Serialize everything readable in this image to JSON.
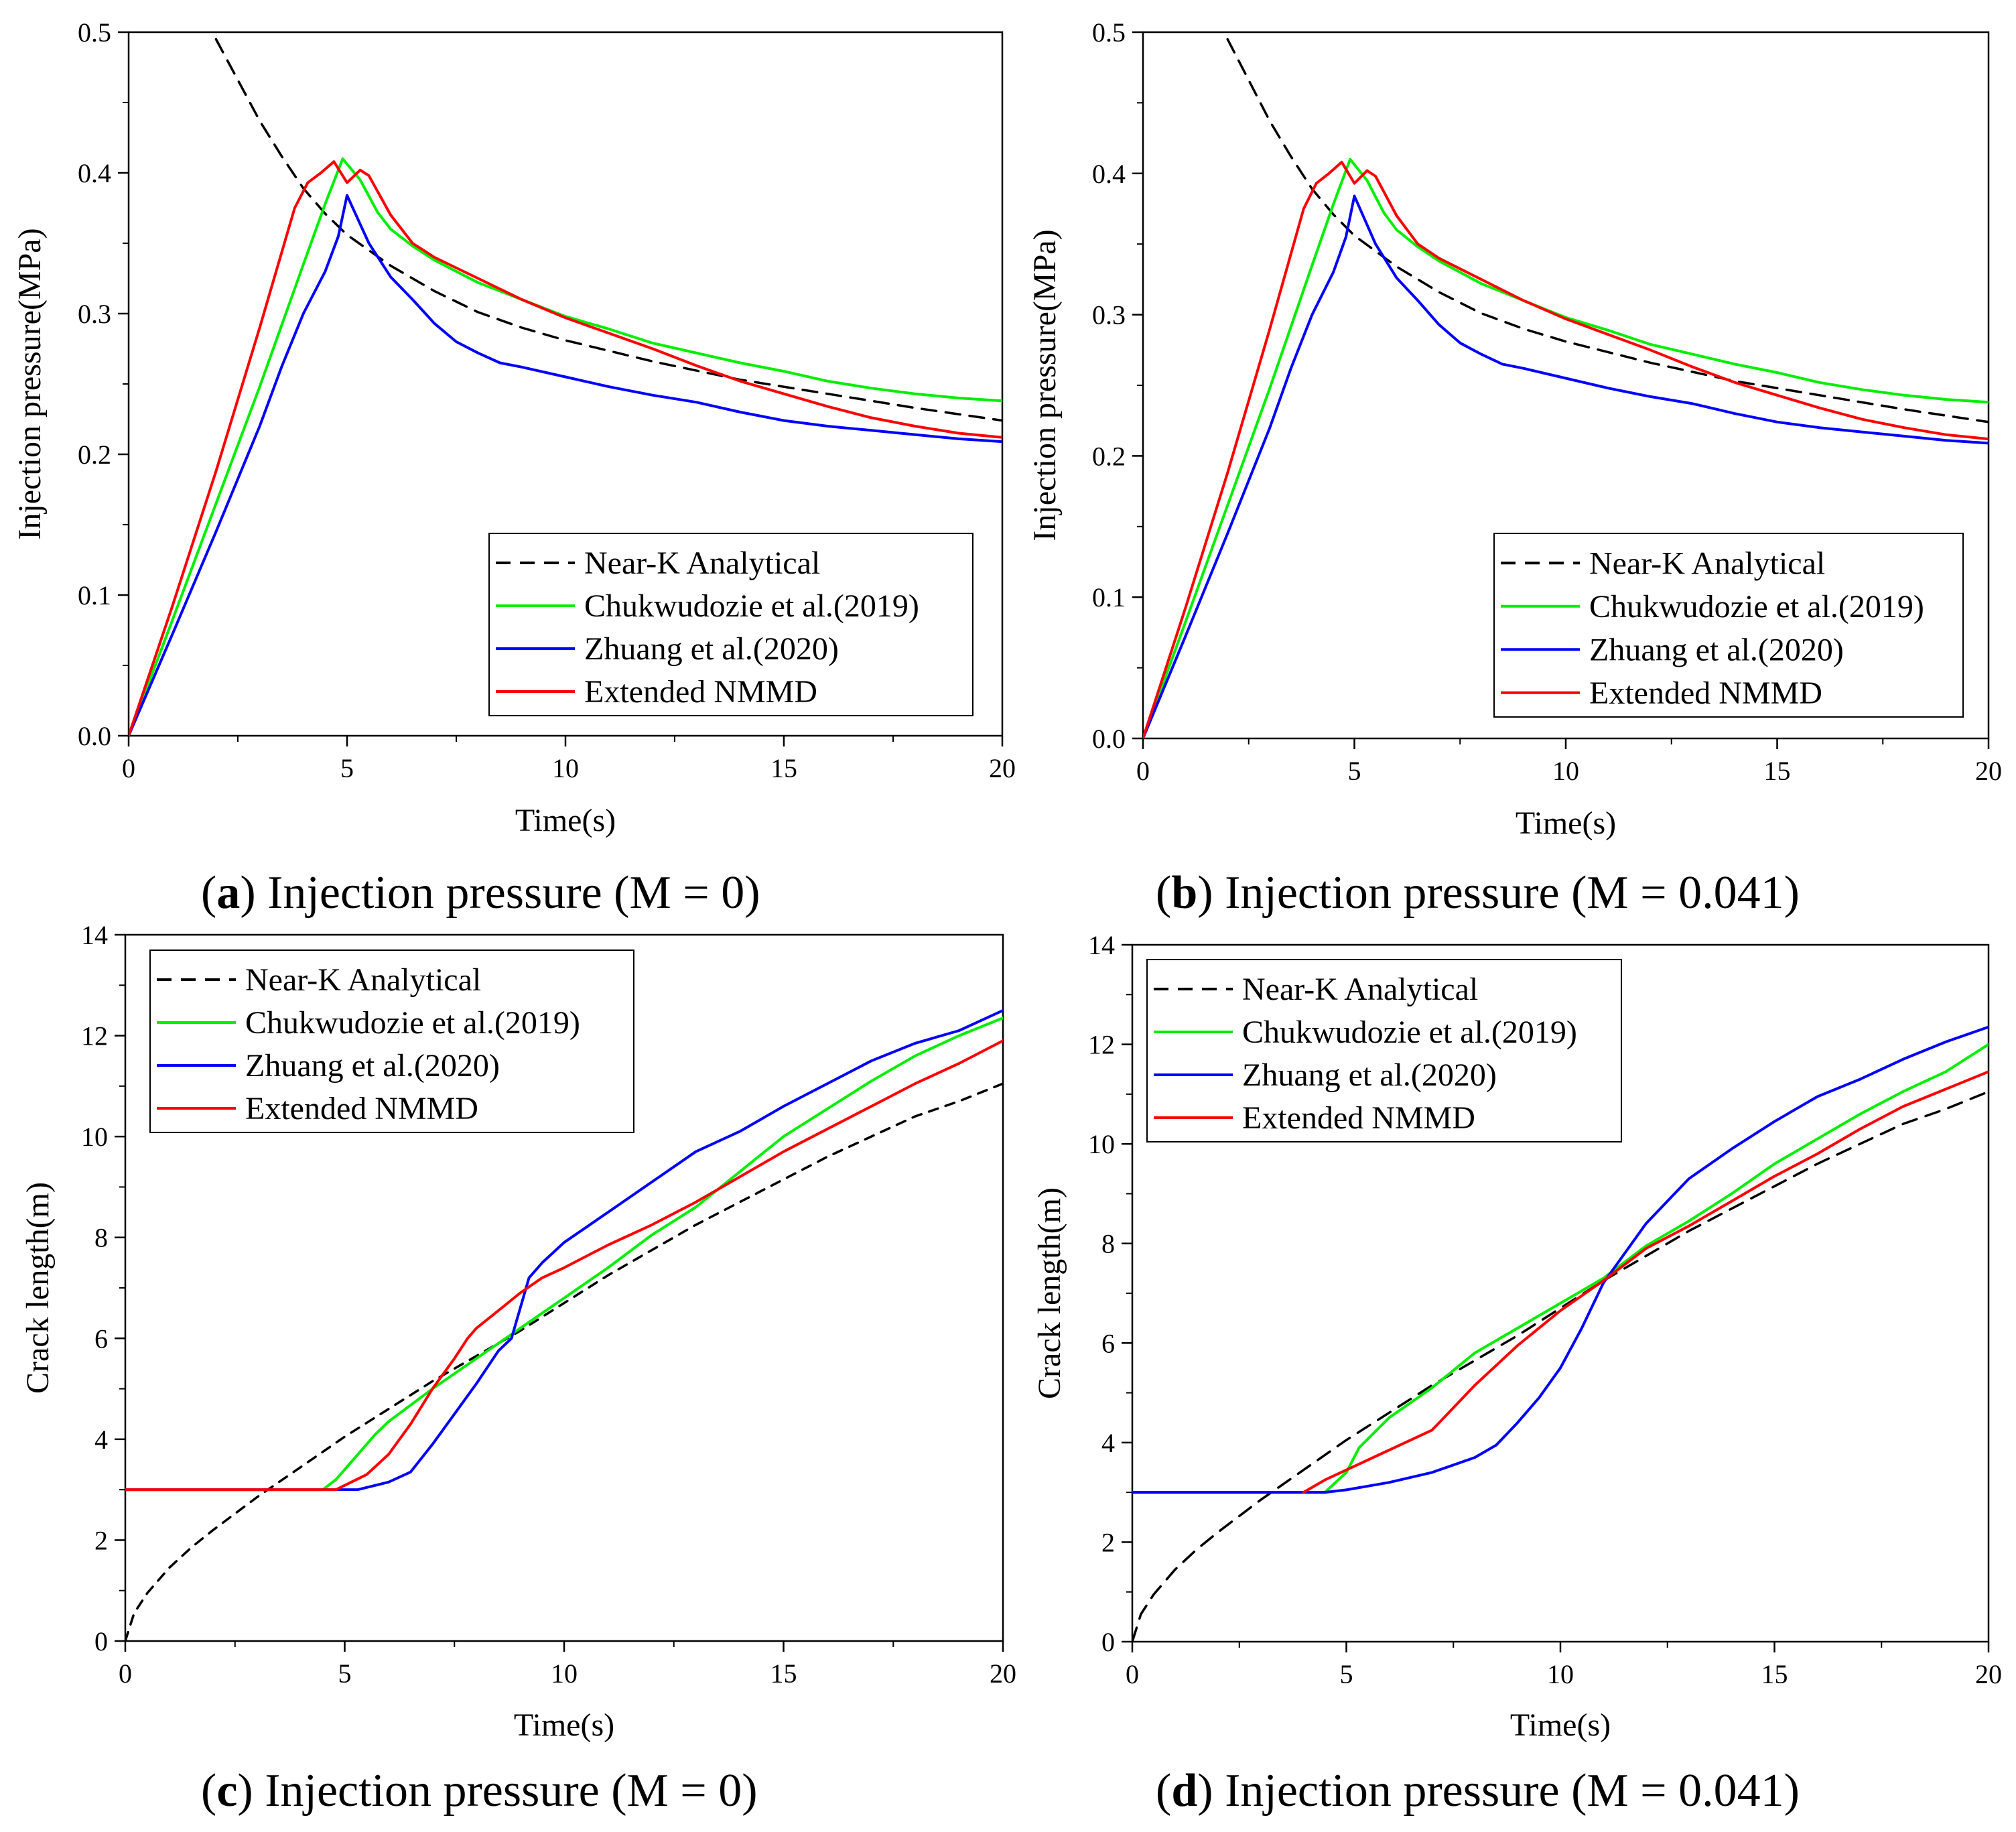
{
  "chart_data": [
    {
      "type": "line",
      "panel_letter": "a",
      "caption_text": " Injection pressure (M = 0)",
      "xlabel": "Time(s)",
      "ylabel": "Injection pressure(MPa)",
      "xlim": [
        0,
        20
      ],
      "ylim": [
        0,
        0.5
      ],
      "xticks": [
        "0",
        "5",
        "10",
        "15",
        "20"
      ],
      "yticks": [
        "0.0",
        "0.1",
        "0.2",
        "0.3",
        "0.4",
        "0.5"
      ],
      "legend_position": "bottom-right",
      "series": [
        {
          "name": "Near-K Analytical",
          "color": "#000000",
          "dash": "dashed",
          "x": [
            2.0,
            2.5,
            3.0,
            3.5,
            4.0,
            4.5,
            5.0,
            6.0,
            7.0,
            8.0,
            9.0,
            10.0,
            12.0,
            14.0,
            16.0,
            18.0,
            20.0
          ],
          "y": [
            0.495,
            0.466,
            0.437,
            0.412,
            0.389,
            0.371,
            0.356,
            0.334,
            0.316,
            0.301,
            0.29,
            0.281,
            0.266,
            0.253,
            0.243,
            0.233,
            0.224
          ]
        },
        {
          "name": "Chukwudozie et al.(2019)",
          "color": "#00ee00",
          "dash": "solid",
          "x": [
            0,
            1,
            2,
            3,
            4.0,
            4.5,
            4.9,
            5.3,
            5.7,
            6.0,
            6.5,
            7.0,
            8.0,
            9.0,
            10.0,
            11.0,
            12.0,
            13.0,
            14.0,
            15.0,
            16.0,
            17.0,
            18.0,
            19.0,
            20.0
          ],
          "y": [
            0,
            0.082,
            0.165,
            0.248,
            0.335,
            0.378,
            0.41,
            0.395,
            0.372,
            0.36,
            0.348,
            0.338,
            0.322,
            0.31,
            0.298,
            0.289,
            0.279,
            0.272,
            0.265,
            0.259,
            0.252,
            0.247,
            0.243,
            0.24,
            0.238
          ]
        },
        {
          "name": "Zhuang et al.(2020)",
          "color": "#0000ff",
          "dash": "solid",
          "x": [
            0,
            1,
            2,
            3,
            3.5,
            4.0,
            4.5,
            4.8,
            5.0,
            5.5,
            6.0,
            6.5,
            7.0,
            7.5,
            8.0,
            8.5,
            9.0,
            10.0,
            11.0,
            12.0,
            13.0,
            14.0,
            15.0,
            16.0,
            17.0,
            18.0,
            19.0,
            20.0
          ],
          "y": [
            0,
            0.072,
            0.145,
            0.22,
            0.262,
            0.3,
            0.33,
            0.355,
            0.384,
            0.35,
            0.326,
            0.31,
            0.293,
            0.28,
            0.272,
            0.265,
            0.262,
            0.255,
            0.248,
            0.242,
            0.237,
            0.23,
            0.224,
            0.22,
            0.217,
            0.214,
            0.211,
            0.209
          ]
        },
        {
          "name": "Extended NMMD",
          "color": "#ff0000",
          "dash": "solid",
          "x": [
            0,
            1,
            2,
            3,
            3.8,
            4.1,
            4.4,
            4.7,
            5.0,
            5.3,
            5.5,
            6.0,
            6.5,
            7.0,
            8.0,
            9.0,
            10.0,
            11.0,
            12.0,
            13.0,
            14.0,
            15.0,
            16.0,
            17.0,
            18.0,
            19.0,
            20.0
          ],
          "y": [
            0,
            0.092,
            0.188,
            0.29,
            0.375,
            0.393,
            0.4,
            0.408,
            0.393,
            0.402,
            0.398,
            0.37,
            0.35,
            0.34,
            0.325,
            0.31,
            0.297,
            0.286,
            0.275,
            0.263,
            0.252,
            0.243,
            0.234,
            0.226,
            0.22,
            0.215,
            0.212
          ]
        }
      ]
    },
    {
      "type": "line",
      "panel_letter": "b",
      "caption_text": " Injection pressure (M = 0.041)",
      "xlabel": "Time(s)",
      "ylabel": "Injection pressure(MPa)",
      "xlim": [
        0,
        20
      ],
      "ylim": [
        0,
        0.5
      ],
      "xticks": [
        "0",
        "5",
        "10",
        "15",
        "20"
      ],
      "yticks": [
        "0.0",
        "0.1",
        "0.2",
        "0.3",
        "0.4",
        "0.5"
      ],
      "legend_position": "bottom-right",
      "series": [
        {
          "name": "Near-K Analytical",
          "color": "#000000",
          "dash": "dashed",
          "x": [
            2.0,
            2.5,
            3.0,
            3.5,
            4.0,
            4.5,
            5.0,
            6.0,
            7.0,
            8.0,
            9.0,
            10.0,
            12.0,
            14.0,
            16.0,
            18.0,
            20.0
          ],
          "y": [
            0.495,
            0.466,
            0.437,
            0.412,
            0.389,
            0.371,
            0.356,
            0.334,
            0.316,
            0.301,
            0.29,
            0.281,
            0.266,
            0.253,
            0.243,
            0.233,
            0.224
          ]
        },
        {
          "name": "Chukwudozie et al.(2019)",
          "color": "#00ee00",
          "dash": "solid",
          "x": [
            0,
            1,
            2,
            3,
            4.0,
            4.5,
            4.9,
            5.3,
            5.7,
            6.0,
            6.5,
            7.0,
            8.0,
            9.0,
            10.0,
            11.0,
            12.0,
            13.0,
            14.0,
            15.0,
            16.0,
            17.0,
            18.0,
            19.0,
            20.0
          ],
          "y": [
            0,
            0.082,
            0.165,
            0.248,
            0.335,
            0.378,
            0.41,
            0.395,
            0.372,
            0.36,
            0.348,
            0.338,
            0.322,
            0.31,
            0.298,
            0.289,
            0.279,
            0.272,
            0.265,
            0.259,
            0.252,
            0.247,
            0.243,
            0.24,
            0.238
          ]
        },
        {
          "name": "Zhuang et al.(2020)",
          "color": "#0000ff",
          "dash": "solid",
          "x": [
            0,
            1,
            2,
            3,
            3.5,
            4.0,
            4.5,
            4.8,
            5.0,
            5.5,
            6.0,
            6.5,
            7.0,
            7.5,
            8.0,
            8.5,
            9.0,
            10.0,
            11.0,
            12.0,
            13.0,
            14.0,
            15.0,
            16.0,
            17.0,
            18.0,
            19.0,
            20.0
          ],
          "y": [
            0,
            0.072,
            0.145,
            0.22,
            0.262,
            0.3,
            0.33,
            0.355,
            0.384,
            0.35,
            0.326,
            0.31,
            0.293,
            0.28,
            0.272,
            0.265,
            0.262,
            0.255,
            0.248,
            0.242,
            0.237,
            0.23,
            0.224,
            0.22,
            0.217,
            0.214,
            0.211,
            0.209
          ]
        },
        {
          "name": "Extended NMMD",
          "color": "#ff0000",
          "dash": "solid",
          "x": [
            0,
            1,
            2,
            3,
            3.8,
            4.1,
            4.4,
            4.7,
            5.0,
            5.3,
            5.5,
            6.0,
            6.5,
            7.0,
            8.0,
            9.0,
            10.0,
            11.0,
            12.0,
            13.0,
            14.0,
            15.0,
            16.0,
            17.0,
            18.0,
            19.0,
            20.0
          ],
          "y": [
            0,
            0.092,
            0.188,
            0.29,
            0.375,
            0.393,
            0.4,
            0.408,
            0.393,
            0.402,
            0.398,
            0.37,
            0.35,
            0.34,
            0.325,
            0.31,
            0.297,
            0.286,
            0.275,
            0.263,
            0.252,
            0.243,
            0.234,
            0.226,
            0.22,
            0.215,
            0.212
          ]
        }
      ]
    },
    {
      "type": "line",
      "panel_letter": "c",
      "caption_text": " Injection pressure (M = 0)",
      "xlabel": "Time(s)",
      "ylabel": "Crack length(m)",
      "xlim": [
        0,
        20
      ],
      "ylim": [
        0,
        14
      ],
      "xticks": [
        "0",
        "5",
        "10",
        "15",
        "20"
      ],
      "yticks": [
        "0",
        "2",
        "4",
        "6",
        "8",
        "10",
        "12",
        "14"
      ],
      "legend_position": "top-left",
      "series": [
        {
          "name": "Near-K Analytical",
          "color": "#000000",
          "dash": "dashed",
          "x": [
            0,
            0.2,
            0.5,
            1,
            1.5,
            2,
            3,
            4,
            5,
            6,
            7,
            8,
            9,
            10,
            11,
            12,
            13,
            14,
            15,
            16,
            17,
            18,
            19,
            20
          ],
          "y": [
            0,
            0.55,
            0.95,
            1.45,
            1.85,
            2.2,
            2.85,
            3.45,
            4.05,
            4.6,
            5.15,
            5.65,
            6.15,
            6.7,
            7.25,
            7.75,
            8.25,
            8.7,
            9.15,
            9.6,
            10.0,
            10.4,
            10.7,
            11.05
          ]
        },
        {
          "name": "Chukwudozie et al.(2019)",
          "color": "#00ee00",
          "dash": "solid",
          "x": [
            0,
            4.5,
            4.8,
            5.2,
            5.7,
            6.0,
            7.0,
            8.0,
            9.0,
            10.0,
            11.0,
            12.0,
            13.0,
            14.0,
            15.0,
            16.0,
            17.0,
            18.0,
            19.0,
            20.0
          ],
          "y": [
            3.0,
            3.0,
            3.2,
            3.6,
            4.1,
            4.35,
            5.0,
            5.6,
            6.2,
            6.8,
            7.4,
            8.05,
            8.6,
            9.3,
            10.0,
            10.55,
            11.1,
            11.6,
            12.0,
            12.35
          ]
        },
        {
          "name": "Zhuang et al.(2020)",
          "color": "#0000ff",
          "dash": "solid",
          "x": [
            0,
            5.3,
            6.0,
            6.5,
            7.0,
            7.5,
            8.0,
            8.5,
            8.8,
            9.2,
            9.5,
            10.0,
            11.0,
            12.0,
            13.0,
            14.0,
            15.0,
            16.0,
            17.0,
            18.0,
            19.0,
            20.0
          ],
          "y": [
            3.0,
            3.0,
            3.15,
            3.35,
            3.9,
            4.5,
            5.1,
            5.75,
            6.0,
            7.2,
            7.5,
            7.9,
            8.5,
            9.1,
            9.7,
            10.1,
            10.6,
            11.05,
            11.5,
            11.85,
            12.1,
            12.5
          ]
        },
        {
          "name": "Extended NMMD",
          "color": "#ff0000",
          "dash": "solid",
          "x": [
            0,
            4.8,
            5.5,
            6.0,
            6.5,
            7.0,
            7.5,
            7.8,
            8.0,
            8.5,
            9.0,
            9.5,
            10.0,
            11.0,
            12.0,
            13.0,
            14.0,
            15.0,
            16.0,
            17.0,
            18.0,
            19.0,
            20.0
          ],
          "y": [
            3.0,
            3.0,
            3.3,
            3.7,
            4.3,
            5.0,
            5.6,
            6.0,
            6.2,
            6.55,
            6.9,
            7.2,
            7.4,
            7.85,
            8.25,
            8.7,
            9.2,
            9.7,
            10.15,
            10.6,
            11.05,
            11.45,
            11.9
          ]
        }
      ]
    },
    {
      "type": "line",
      "panel_letter": "d",
      "caption_text": " Injection pressure (M = 0.041)",
      "xlabel": "Time(s)",
      "ylabel": "Crack length(m)",
      "xlim": [
        0,
        20
      ],
      "ylim": [
        0,
        14
      ],
      "xticks": [
        "0",
        "5",
        "10",
        "15",
        "20"
      ],
      "yticks": [
        "0",
        "2",
        "4",
        "6",
        "8",
        "10",
        "12",
        "14"
      ],
      "legend_position": "top-left",
      "series": [
        {
          "name": "Near-K Analytical",
          "color": "#000000",
          "dash": "dashed",
          "x": [
            0,
            0.2,
            0.5,
            1,
            1.5,
            2,
            3,
            4,
            5,
            6,
            7,
            8,
            9,
            10,
            11,
            12,
            13,
            14,
            15,
            16,
            17,
            18,
            19,
            20
          ],
          "y": [
            0,
            0.55,
            0.95,
            1.45,
            1.85,
            2.2,
            2.85,
            3.45,
            4.05,
            4.6,
            5.15,
            5.65,
            6.15,
            6.7,
            7.25,
            7.75,
            8.25,
            8.7,
            9.15,
            9.6,
            10.0,
            10.4,
            10.7,
            11.05
          ]
        },
        {
          "name": "Chukwudozie et al.(2019)",
          "color": "#00ee00",
          "dash": "solid",
          "x": [
            0,
            4.5,
            5.0,
            5.3,
            6.0,
            7.0,
            8.0,
            9.0,
            10.0,
            11.0,
            12.0,
            13.0,
            14.0,
            15.0,
            16.0,
            17.0,
            18.0,
            19.0,
            20.0
          ],
          "y": [
            3.0,
            3.0,
            3.4,
            3.9,
            4.5,
            5.1,
            5.8,
            6.3,
            6.8,
            7.3,
            7.95,
            8.45,
            9.0,
            9.6,
            10.1,
            10.6,
            11.05,
            11.45,
            12.0
          ]
        },
        {
          "name": "Zhuang et al.(2020)",
          "color": "#0000ff",
          "dash": "solid",
          "x": [
            0,
            4.5,
            5.0,
            6.0,
            7.0,
            8.0,
            8.5,
            9.0,
            9.5,
            10.0,
            10.5,
            11.0,
            12.0,
            13.0,
            14.0,
            15.0,
            16.0,
            17.0,
            18.0,
            19.0,
            20.0
          ],
          "y": [
            3.0,
            3.0,
            3.05,
            3.2,
            3.4,
            3.7,
            3.95,
            4.4,
            4.9,
            5.5,
            6.3,
            7.2,
            8.4,
            9.3,
            9.9,
            10.45,
            10.95,
            11.3,
            11.7,
            12.05,
            12.35
          ]
        },
        {
          "name": "Extended NMMD",
          "color": "#ff0000",
          "dash": "solid",
          "x": [
            4.0,
            4.5,
            5.0,
            6.0,
            7.0,
            7.5,
            8.0,
            9.0,
            10.0,
            11.0,
            12.0,
            13.0,
            14.0,
            15.0,
            16.0,
            17.0,
            18.0,
            19.0,
            20.0
          ],
          "y": [
            3.0,
            3.25,
            3.45,
            3.85,
            4.25,
            4.7,
            5.15,
            5.95,
            6.65,
            7.25,
            7.9,
            8.35,
            8.85,
            9.35,
            9.8,
            10.3,
            10.75,
            11.1,
            11.45
          ]
        }
      ]
    }
  ]
}
